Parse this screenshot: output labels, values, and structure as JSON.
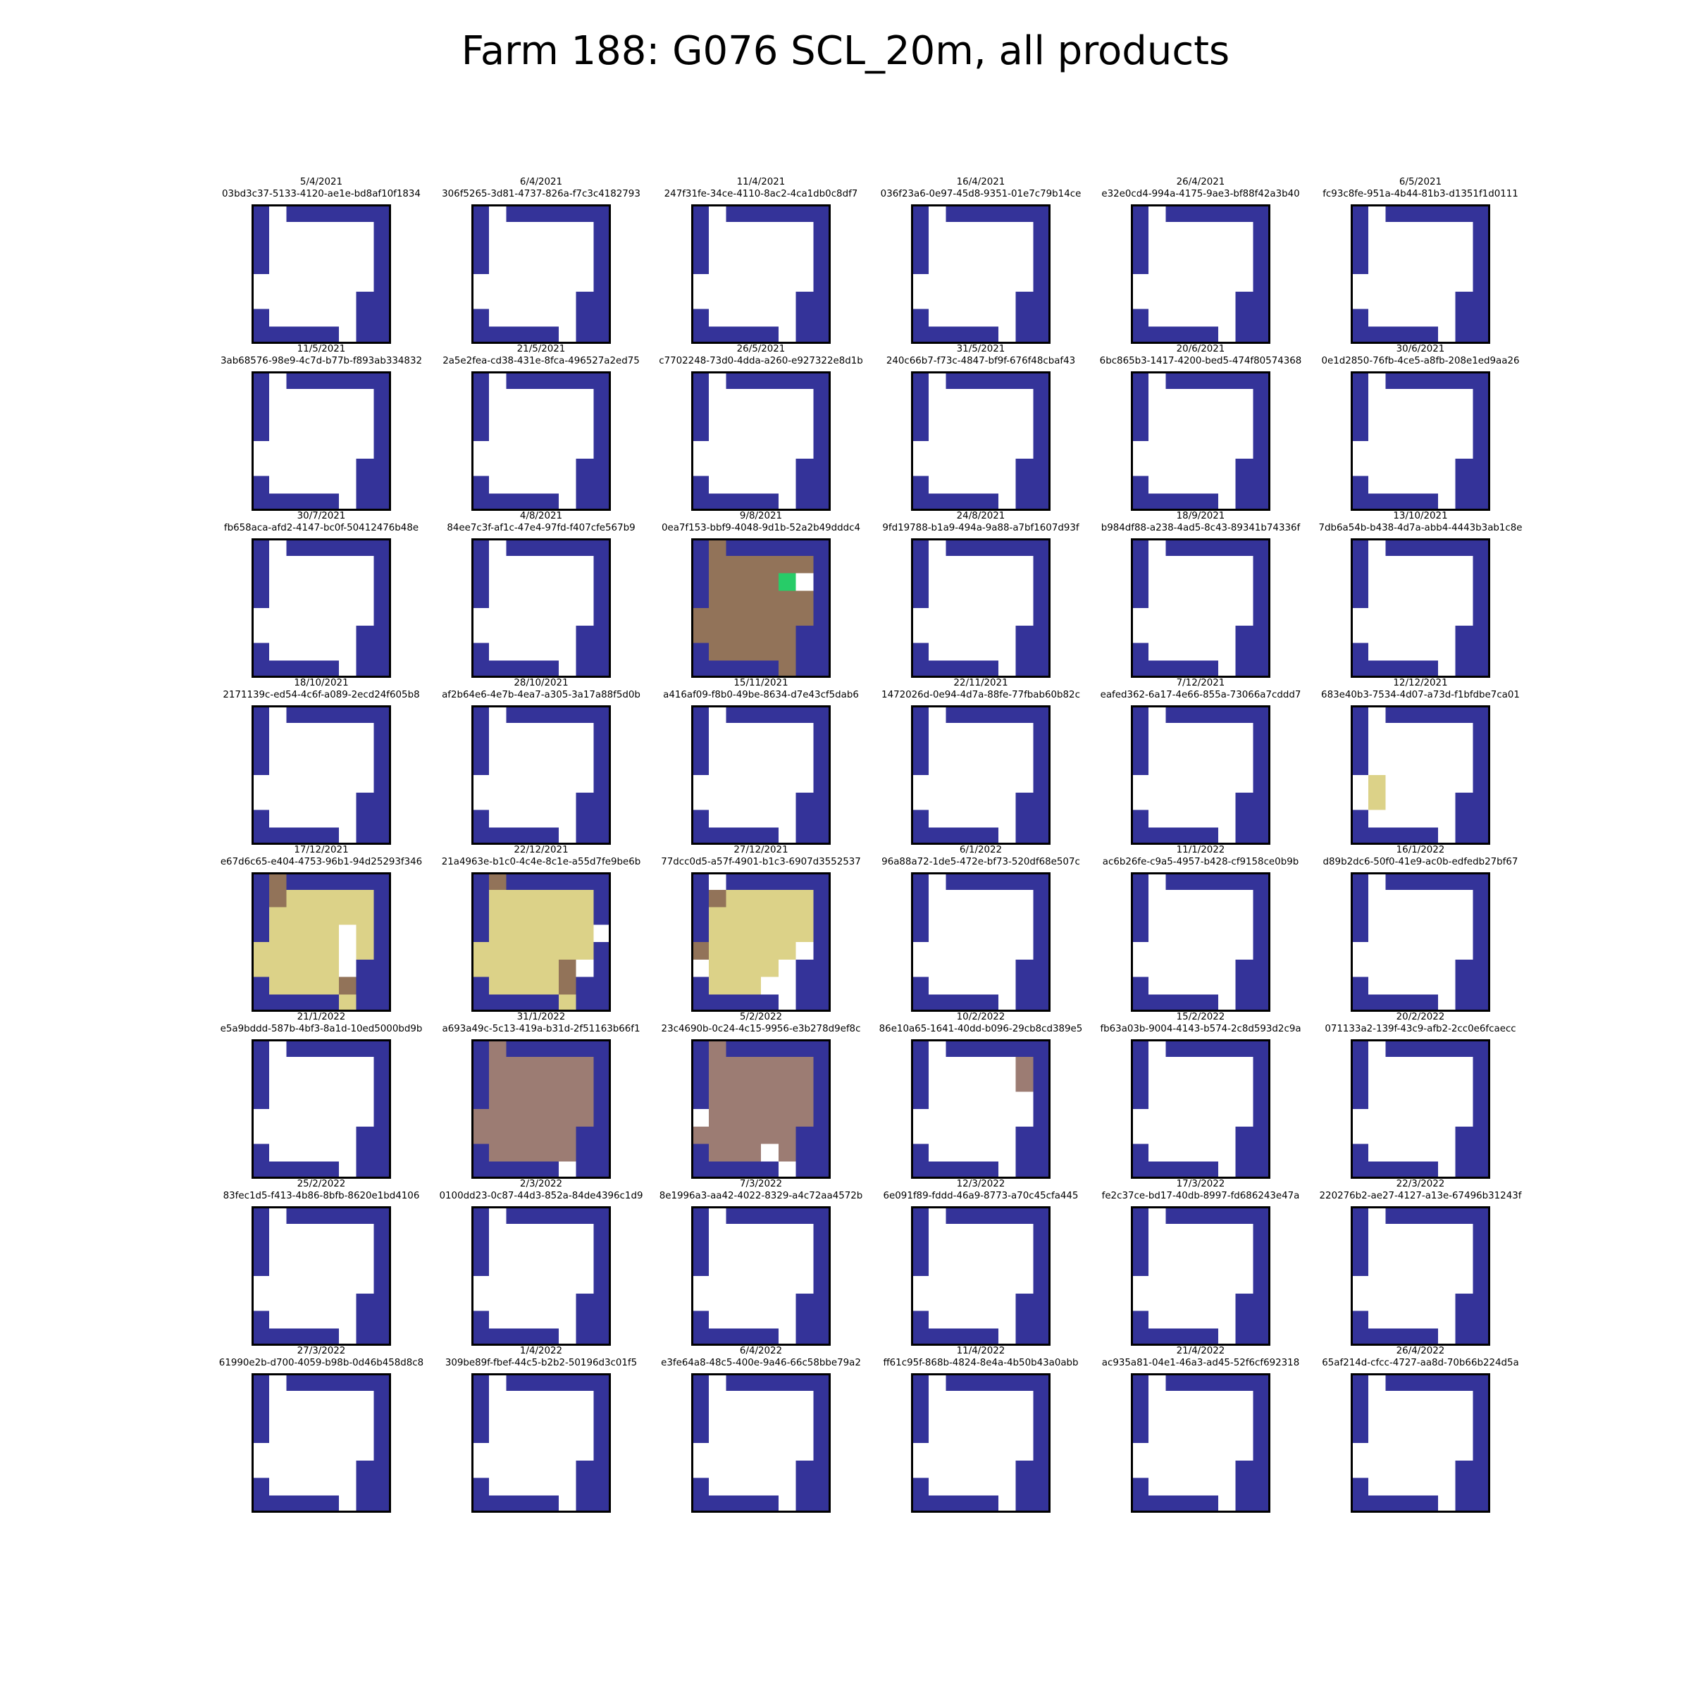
{
  "title": "Farm 188: G076 SCL_20m, all products",
  "chart_data": {
    "type": "heatmap",
    "title": "Farm 188: G076 SCL_20m, all products",
    "layout": "8 rows x 6 columns of small 8x8 scene classification tiles",
    "colors": {
      "W": "#ffffff",
      "B": "#343399",
      "D": "#927359",
      "G": "#27cc68",
      "Y": "#dcd288",
      "M": "#9c7c73"
    },
    "legend": {
      "W": "white",
      "B": "dark blue",
      "D": "brown",
      "G": "green",
      "Y": "pale yellow",
      "M": "grey-brown"
    },
    "panels": [
      {
        "date": "5/4/2021",
        "id": "03bd3c37-5133-4120-ae1e-bd8af10f1834",
        "grid": [
          "BWBBBBBB",
          "BWWWWWWB",
          "BWWWWWWB",
          "BWWWWWWB",
          "WWWWWWWB",
          "WWWWWWBB",
          "BWWWWWBB",
          "BBBBBWBB"
        ]
      },
      {
        "date": "6/4/2021",
        "id": "306f5265-3d81-4737-826a-f7c3c4182793",
        "grid": [
          "BWBBBBBB",
          "BWWWWWWB",
          "BWWWWWWB",
          "BWWWWWWB",
          "WWWWWWWB",
          "WWWWWWBB",
          "BWWWWWBB",
          "BBBBBWBB"
        ]
      },
      {
        "date": "11/4/2021",
        "id": "247f31fe-34ce-4110-8ac2-4ca1db0c8df7",
        "grid": [
          "BWBBBBBB",
          "BWWWWWWB",
          "BWWWWWWB",
          "BWWWWWWB",
          "WWWWWWWB",
          "WWWWWWBB",
          "BWWWWWBB",
          "BBBBBWBB"
        ]
      },
      {
        "date": "16/4/2021",
        "id": "036f23a6-0e97-45d8-9351-01e7c79b14ce",
        "grid": [
          "BWBBBBBB",
          "BWWWWWWB",
          "BWWWWWWB",
          "BWWWWWWB",
          "WWWWWWWB",
          "WWWWWWBB",
          "BWWWWWBB",
          "BBBBBWBB"
        ]
      },
      {
        "date": "26/4/2021",
        "id": "e32e0cd4-994a-4175-9ae3-bf88f42a3b40",
        "grid": [
          "BWBBBBBB",
          "BWWWWWWB",
          "BWWWWWWB",
          "BWWWWWWB",
          "WWWWWWWB",
          "WWWWWWBB",
          "BWWWWWBB",
          "BBBBBWBB"
        ]
      },
      {
        "date": "6/5/2021",
        "id": "fc93c8fe-951a-4b44-81b3-d1351f1d0111",
        "grid": [
          "BWBBBBBB",
          "BWWWWWWB",
          "BWWWWWWB",
          "BWWWWWWB",
          "WWWWWWWB",
          "WWWWWWBB",
          "BWWWWWBB",
          "BBBBBWBB"
        ]
      },
      {
        "date": "11/5/2021",
        "id": "3ab68576-98e9-4c7d-b77b-f893ab334832",
        "grid": [
          "BWBBBBBB",
          "BWWWWWWB",
          "BWWWWWWB",
          "BWWWWWWB",
          "WWWWWWWB",
          "WWWWWWBB",
          "BWWWWWBB",
          "BBBBBWBB"
        ]
      },
      {
        "date": "21/5/2021",
        "id": "2a5e2fea-cd38-431e-8fca-496527a2ed75",
        "grid": [
          "BWBBBBBB",
          "BWWWWWWB",
          "BWWWWWWB",
          "BWWWWWWB",
          "WWWWWWWB",
          "WWWWWWBB",
          "BWWWWWBB",
          "BBBBBWBB"
        ]
      },
      {
        "date": "26/5/2021",
        "id": "c7702248-73d0-4dda-a260-e927322e8d1b",
        "grid": [
          "BWBBBBBB",
          "BWWWWWWB",
          "BWWWWWWB",
          "BWWWWWWB",
          "WWWWWWWB",
          "WWWWWWBB",
          "BWWWWWBB",
          "BBBBBWBB"
        ]
      },
      {
        "date": "31/5/2021",
        "id": "240c66b7-f73c-4847-bf9f-676f48cbaf43",
        "grid": [
          "BWBBBBBB",
          "BWWWWWWB",
          "BWWWWWWB",
          "BWWWWWWB",
          "WWWWWWWB",
          "WWWWWWBB",
          "BWWWWWBB",
          "BBBBBWBB"
        ]
      },
      {
        "date": "20/6/2021",
        "id": "6bc865b3-1417-4200-bed5-474f80574368",
        "grid": [
          "BWBBBBBB",
          "BWWWWWWB",
          "BWWWWWWB",
          "BWWWWWWB",
          "WWWWWWWB",
          "WWWWWWBB",
          "BWWWWWBB",
          "BBBBBWBB"
        ]
      },
      {
        "date": "30/6/2021",
        "id": "0e1d2850-76fb-4ce5-a8fb-208e1ed9aa26",
        "grid": [
          "BWBBBBBB",
          "BWWWWWWB",
          "BWWWWWWB",
          "BWWWWWWB",
          "WWWWWWWB",
          "WWWWWWBB",
          "BWWWWWBB",
          "BBBBBWBB"
        ]
      },
      {
        "date": "30/7/2021",
        "id": "fb658aca-afd2-4147-bc0f-50412476b48e",
        "grid": [
          "BWBBBBBB",
          "BWWWWWWB",
          "BWWWWWWB",
          "BWWWWWWB",
          "WWWWWWWB",
          "WWWWWWBB",
          "BWWWWWBB",
          "BBBBBWBB"
        ]
      },
      {
        "date": "4/8/2021",
        "id": "84ee7c3f-af1c-47e4-97fd-f407cfe567b9",
        "grid": [
          "BWBBBBBB",
          "BWWWWWWB",
          "BWWWWWWB",
          "BWWWWWWB",
          "WWWWWWWB",
          "WWWWWWBB",
          "BWWWWWBB",
          "BBBBBWBB"
        ]
      },
      {
        "date": "9/8/2021",
        "id": "0ea7f153-bbf9-4048-9d1b-52a2b49dddc4",
        "grid": [
          "BDBBBBBB",
          "BDDDDDDB",
          "BDDDDGWB",
          "BDDDDDDB",
          "DDDDDDDB",
          "DDDDDDBB",
          "BDDDDDBB",
          "BBBBBDBB"
        ]
      },
      {
        "date": "24/8/2021",
        "id": "9fd19788-b1a9-494a-9a88-a7bf1607d93f",
        "grid": [
          "BWBBBBBB",
          "BWWWWWWB",
          "BWWWWWWB",
          "BWWWWWWB",
          "WWWWWWWB",
          "WWWWWWBB",
          "BWWWWWBB",
          "BBBBBWBB"
        ]
      },
      {
        "date": "18/9/2021",
        "id": "b984df88-a238-4ad5-8c43-89341b74336f",
        "grid": [
          "BWBBBBBB",
          "BWWWWWWB",
          "BWWWWWWB",
          "BWWWWWWB",
          "WWWWWWWB",
          "WWWWWWBB",
          "BWWWWWBB",
          "BBBBBWBB"
        ]
      },
      {
        "date": "13/10/2021",
        "id": "7db6a54b-b438-4d7a-abb4-4443b3ab1c8e",
        "grid": [
          "BWBBBBBB",
          "BWWWWWWB",
          "BWWWWWWB",
          "BWWWWWWB",
          "WWWWWWWB",
          "WWWWWWBB",
          "BWWWWWBB",
          "BBBBBWBB"
        ]
      },
      {
        "date": "18/10/2021",
        "id": "2171139c-ed54-4c6f-a089-2ecd24f605b8",
        "grid": [
          "BWBBBBBB",
          "BWWWWWWB",
          "BWWWWWWB",
          "BWWWWWWB",
          "WWWWWWWB",
          "WWWWWWBB",
          "BWWWWWBB",
          "BBBBBWBB"
        ]
      },
      {
        "date": "28/10/2021",
        "id": "af2b64e6-4e7b-4ea7-a305-3a17a88f5d0b",
        "grid": [
          "BWBBBBBB",
          "BWWWWWWB",
          "BWWWWWWB",
          "BWWWWWWB",
          "WWWWWWWB",
          "WWWWWWBB",
          "BWWWWWBB",
          "BBBBBWBB"
        ]
      },
      {
        "date": "15/11/2021",
        "id": "a416af09-f8b0-49be-8634-d7e43cf5dab6",
        "grid": [
          "BWBBBBBB",
          "BWWWWWWB",
          "BWWWWWWB",
          "BWWWWWWB",
          "WWWWWWWB",
          "WWWWWWBB",
          "BWWWWWBB",
          "BBBBBWBB"
        ]
      },
      {
        "date": "22/11/2021",
        "id": "1472026d-0e94-4d7a-88fe-77fbab60b82c",
        "grid": [
          "BWBBBBBB",
          "BWWWWWWB",
          "BWWWWWWB",
          "BWWWWWWB",
          "WWWWWWWB",
          "WWWWWWBB",
          "BWWWWWBB",
          "BBBBBWBB"
        ]
      },
      {
        "date": "7/12/2021",
        "id": "eafed362-6a17-4e66-855a-73066a7cddd7",
        "grid": [
          "BWBBBBBB",
          "BWWWWWWB",
          "BWWWWWWB",
          "BWWWWWWB",
          "WWWWWWWB",
          "WWWWWWBB",
          "BWWWWWBB",
          "BBBBBWBB"
        ]
      },
      {
        "date": "12/12/2021",
        "id": "683e40b3-7534-4d07-a73d-f1bfdbe7ca01",
        "grid": [
          "BWBBBBBB",
          "BWWWWWWB",
          "BWWWWWWB",
          "BWWWWWWB",
          "WYWWWWWB",
          "WYWWWWBB",
          "BWWWWWBB",
          "BBBBBWBB"
        ]
      },
      {
        "date": "17/12/2021",
        "id": "e67d6c65-e404-4753-96b1-94d25293f346",
        "grid": [
          "BDBBBBBB",
          "BDYYYYYB",
          "BYYYYYYB",
          "BYYYYWYB",
          "YYYYYWYB",
          "YYYYYWBB",
          "BYYYYDBB",
          "BBBBBYBB"
        ]
      },
      {
        "date": "22/12/2021",
        "id": "21a4963e-b1c0-4c4e-8c1e-a55d7fe9be6b",
        "grid": [
          "BDBBBBBB",
          "BYYYYYYB",
          "BYYYYYYB",
          "BYYYYYYW",
          "YYYYYYYB",
          "YYYYYDWB",
          "BYYYYDBB",
          "BBBBBYBB"
        ]
      },
      {
        "date": "27/12/2021",
        "id": "77dcc0d5-a57f-4901-b1c3-6907d3552537",
        "grid": [
          "BWBBBBBB",
          "BDYYYYYB",
          "BYYYYYYB",
          "BYYYYYYB",
          "DYYYYYWB",
          "WYYYYWBB",
          "BYYYWWBB",
          "BBBBBWBB"
        ]
      },
      {
        "date": "6/1/2022",
        "id": "96a88a72-1de5-472e-bf73-520df68e507c",
        "grid": [
          "BWBBBBBB",
          "BWWWWWWB",
          "BWWWWWWB",
          "BWWWWWWB",
          "WWWWWWWB",
          "WWWWWWBB",
          "BWWWWWBB",
          "BBBBBWBB"
        ]
      },
      {
        "date": "11/1/2022",
        "id": "ac6b26fe-c9a5-4957-b428-cf9158ce0b9b",
        "grid": [
          "BWBBBBBB",
          "BWWWWWWB",
          "BWWWWWWB",
          "BWWWWWWB",
          "WWWWWWWB",
          "WWWWWWBB",
          "BWWWWWBB",
          "BBBBBWBB"
        ]
      },
      {
        "date": "16/1/2022",
        "id": "d89b2dc6-50f0-41e9-ac0b-edfedb27bf67",
        "grid": [
          "BWBBBBBB",
          "BWWWWWWB",
          "BWWWWWWB",
          "BWWWWWWB",
          "WWWWWWWB",
          "WWWWWWBB",
          "BWWWWWBB",
          "BBBBBWBB"
        ]
      },
      {
        "date": "21/1/2022",
        "id": "e5a9bddd-587b-4bf3-8a1d-10ed5000bd9b",
        "grid": [
          "BWBBBBBB",
          "BWWWWWWB",
          "BWWWWWWB",
          "BWWWWWWB",
          "WWWWWWWB",
          "WWWWWWBB",
          "BWWWWWBB",
          "BBBBBWBB"
        ]
      },
      {
        "date": "31/1/2022",
        "id": "a693a49c-5c13-419a-b31d-2f51163b66f1",
        "grid": [
          "BMBBBBBB",
          "BMMMMMMB",
          "BMMMMMMB",
          "BMMMMMMB",
          "MMMMMMMB",
          "MMMMMMBB",
          "BMMMMMBB",
          "BBBBBWBB"
        ]
      },
      {
        "date": "5/2/2022",
        "id": "23c4690b-0c24-4c15-9956-e3b278d9ef8c",
        "grid": [
          "BMBBBBBB",
          "BMMMMMMB",
          "BMMMMMMB",
          "BMMMMMMB",
          "WMMMMMMB",
          "MMMMMMBB",
          "BMMMWMBB",
          "BBBBBWBB"
        ]
      },
      {
        "date": "10/2/2022",
        "id": "86e10a65-1641-40dd-b096-29cb8cd389e5",
        "grid": [
          "BWBBBBBB",
          "BWWWWWMB",
          "BWWWWWMB",
          "BWWWWWWB",
          "WWWWWWWB",
          "WWWWWWBB",
          "BWWWWWBB",
          "BBBBBWBB"
        ]
      },
      {
        "date": "15/2/2022",
        "id": "fb63a03b-9004-4143-b574-2c8d593d2c9a",
        "grid": [
          "BWBBBBBB",
          "BWWWWWWB",
          "BWWWWWWB",
          "BWWWWWWB",
          "WWWWWWWB",
          "WWWWWWBB",
          "BWWWWWBB",
          "BBBBBWBB"
        ]
      },
      {
        "date": "20/2/2022",
        "id": "071133a2-139f-43c9-afb2-2cc0e6fcaecc",
        "grid": [
          "BWBBBBBB",
          "BWWWWWWB",
          "BWWWWWWB",
          "BWWWWWWB",
          "WWWWWWWB",
          "WWWWWWBB",
          "BWWWWWBB",
          "BBBBBWBB"
        ]
      },
      {
        "date": "25/2/2022",
        "id": "83fec1d5-f413-4b86-8bfb-8620e1bd4106",
        "grid": [
          "BWBBBBBB",
          "BWWWWWWB",
          "BWWWWWWB",
          "BWWWWWWB",
          "WWWWWWWB",
          "WWWWWWBB",
          "BWWWWWBB",
          "BBBBBWBB"
        ]
      },
      {
        "date": "2/3/2022",
        "id": "0100dd23-0c87-44d3-852a-84de4396c1d9",
        "grid": [
          "BWBBBBBB",
          "BWWWWWWB",
          "BWWWWWWB",
          "BWWWWWWB",
          "WWWWWWWB",
          "WWWWWWBB",
          "BWWWWWBB",
          "BBBBBWBB"
        ]
      },
      {
        "date": "7/3/2022",
        "id": "8e1996a3-aa42-4022-8329-a4c72aa4572b",
        "grid": [
          "BWBBBBBB",
          "BWWWWWWB",
          "BWWWWWWB",
          "BWWWWWWB",
          "WWWWWWWB",
          "WWWWWWBB",
          "BWWWWWBB",
          "BBBBBWBB"
        ]
      },
      {
        "date": "12/3/2022",
        "id": "6e091f89-fddd-46a9-8773-a70c45cfa445",
        "grid": [
          "BWBBBBBB",
          "BWWWWWWB",
          "BWWWWWWB",
          "BWWWWWWB",
          "WWWWWWWB",
          "WWWWWWBB",
          "BWWWWWBB",
          "BBBBBWBB"
        ]
      },
      {
        "date": "17/3/2022",
        "id": "fe2c37ce-bd17-40db-8997-fd686243e47a",
        "grid": [
          "BWBBBBBB",
          "BWWWWWWB",
          "BWWWWWWB",
          "BWWWWWWB",
          "WWWWWWWB",
          "WWWWWWBB",
          "BWWWWWBB",
          "BBBBBWBB"
        ]
      },
      {
        "date": "22/3/2022",
        "id": "220276b2-ae27-4127-a13e-67496b31243f",
        "grid": [
          "BWBBBBBB",
          "BWWWWWWB",
          "BWWWWWWB",
          "BWWWWWWB",
          "WWWWWWWB",
          "WWWWWWBB",
          "BWWWWWBB",
          "BBBBBWBB"
        ]
      },
      {
        "date": "27/3/2022",
        "id": "61990e2b-d700-4059-b98b-0d46b458d8c8",
        "grid": [
          "BWBBBBBB",
          "BWWWWWWB",
          "BWWWWWWB",
          "BWWWWWWB",
          "WWWWWWWB",
          "WWWWWWBB",
          "BWWWWWBB",
          "BBBBBWBB"
        ]
      },
      {
        "date": "1/4/2022",
        "id": "309be89f-fbef-44c5-b2b2-50196d3c01f5",
        "grid": [
          "BWBBBBBB",
          "BWWWWWWB",
          "BWWWWWWB",
          "BWWWWWWB",
          "WWWWWWWB",
          "WWWWWWBB",
          "BWWWWWBB",
          "BBBBBWBB"
        ]
      },
      {
        "date": "6/4/2022",
        "id": "e3fe64a8-48c5-400e-9a46-66c58bbe79a2",
        "grid": [
          "BWBBBBBB",
          "BWWWWWWB",
          "BWWWWWWB",
          "BWWWWWWB",
          "WWWWWWWB",
          "WWWWWWBB",
          "BWWWWWBB",
          "BBBBBWBB"
        ]
      },
      {
        "date": "11/4/2022",
        "id": "ff61c95f-868b-4824-8e4a-4b50b43a0abb",
        "grid": [
          "BWBBBBBB",
          "BWWWWWWB",
          "BWWWWWWB",
          "BWWWWWWB",
          "WWWWWWWB",
          "WWWWWWBB",
          "BWWWWWBB",
          "BBBBBWBB"
        ]
      },
      {
        "date": "21/4/2022",
        "id": "ac935a81-04e1-46a3-ad45-52f6cf692318",
        "grid": [
          "BWBBBBBB",
          "BWWWWWWB",
          "BWWWWWWB",
          "BWWWWWWB",
          "WWWWWWWB",
          "WWWWWWBB",
          "BWWWWWBB",
          "BBBBBWBB"
        ]
      },
      {
        "date": "26/4/2022",
        "id": "65af214d-cfcc-4727-aa8d-70b66b224d5a",
        "grid": [
          "BWBBBBBB",
          "BWWWWWWB",
          "BWWWWWWB",
          "BWWWWWWB",
          "WWWWWWWB",
          "WWWWWWBB",
          "BWWWWWBB",
          "BBBBBWBB"
        ]
      }
    ]
  }
}
